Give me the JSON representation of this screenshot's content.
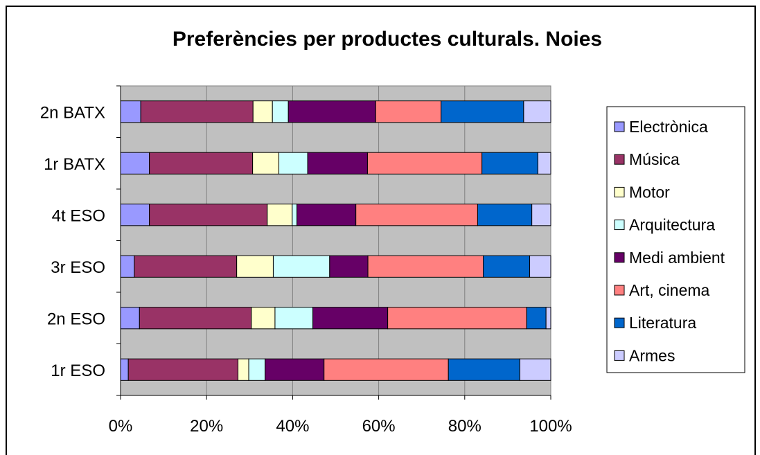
{
  "chart_data": {
    "type": "bar",
    "stacked": "percent",
    "orientation": "horizontal",
    "title": "Preferències per productes culturals. Noies",
    "categories": [
      "2n BATX",
      "1r BATX",
      "4t ESO",
      "3r ESO",
      "2n ESO",
      "1r ESO"
    ],
    "x_ticks": [
      "0%",
      "20%",
      "40%",
      "60%",
      "80%",
      "100%"
    ],
    "xlim": [
      0,
      100
    ],
    "grid": true,
    "legend_position": "right",
    "series": [
      {
        "name": "Electrònica",
        "color": "#9999FF",
        "values": [
          4.7,
          6.7,
          6.7,
          3.2,
          4.4,
          1.8
        ]
      },
      {
        "name": "Música",
        "color": "#993366",
        "values": [
          26.1,
          24.0,
          27.4,
          23.8,
          26.0,
          25.5
        ]
      },
      {
        "name": "Motor",
        "color": "#FFFFCC",
        "values": [
          4.5,
          6.1,
          5.8,
          8.5,
          5.5,
          2.5
        ]
      },
      {
        "name": "Arquitectura",
        "color": "#CCFFFF",
        "values": [
          3.7,
          6.7,
          1.1,
          13.1,
          8.8,
          3.8
        ]
      },
      {
        "name": "Medi ambient",
        "color": "#660066",
        "values": [
          20.3,
          13.9,
          13.7,
          8.9,
          17.4,
          13.7
        ]
      },
      {
        "name": "Art, cinema",
        "color": "#FF8080",
        "values": [
          15.2,
          26.6,
          28.3,
          26.8,
          32.3,
          28.9
        ]
      },
      {
        "name": "Literatura",
        "color": "#0066CC",
        "values": [
          19.2,
          13.0,
          12.6,
          10.8,
          4.5,
          16.6
        ]
      },
      {
        "name": "Armes",
        "color": "#CCCCFF",
        "values": [
          6.3,
          3.0,
          4.4,
          4.9,
          1.1,
          7.2
        ]
      }
    ]
  }
}
